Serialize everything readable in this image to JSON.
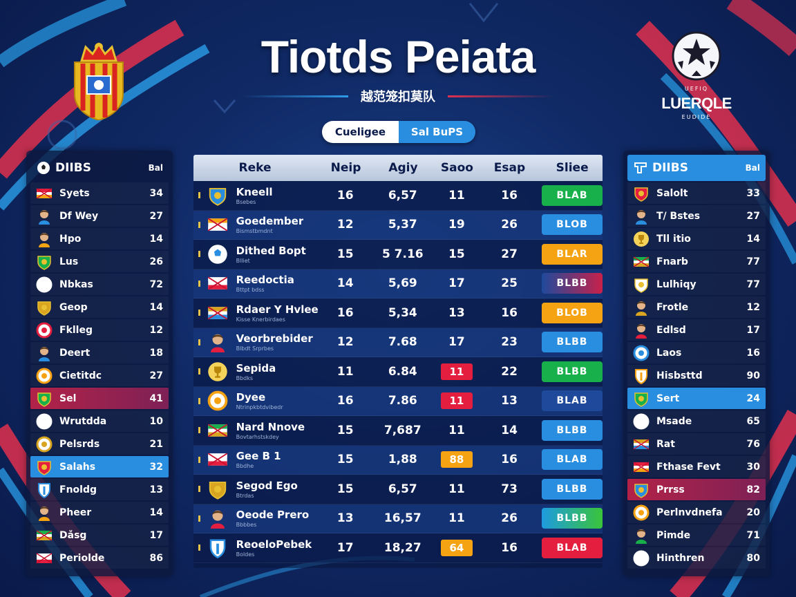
{
  "header": {
    "title": "Tiotds Peiata",
    "subtitle": "越范笼扣莫队",
    "toggle": {
      "active": "Cueligee",
      "inactive": "Sal BuPS"
    },
    "league": {
      "name": "LUERQLE",
      "tag": "EUDIDE",
      "top": "UEFIQ"
    }
  },
  "left_panel": {
    "header": {
      "label": "DIIBS",
      "value": "Bal"
    },
    "rows": [
      {
        "name": "Syets",
        "value": "34",
        "icon": "flag-icon",
        "style": ""
      },
      {
        "name": "Df Wey",
        "value": "27",
        "icon": "player-icon",
        "style": ""
      },
      {
        "name": "Hpo",
        "value": "14",
        "icon": "player-icon",
        "style": ""
      },
      {
        "name": "Lus",
        "value": "26",
        "icon": "crest-icon",
        "style": ""
      },
      {
        "name": "Nbkas",
        "value": "72",
        "icon": "badge-icon",
        "style": ""
      },
      {
        "name": "Geop",
        "value": "14",
        "icon": "crest-icon",
        "style": ""
      },
      {
        "name": "Fklleg",
        "value": "12",
        "icon": "badge-icon",
        "style": ""
      },
      {
        "name": "Deert",
        "value": "18",
        "icon": "player-icon",
        "style": ""
      },
      {
        "name": "Cietitdc",
        "value": "27",
        "icon": "badge-icon",
        "style": ""
      },
      {
        "name": "Sel",
        "value": "41",
        "icon": "crest-icon",
        "style": "red"
      },
      {
        "name": "Wrutdda",
        "value": "10",
        "icon": "badge-icon",
        "style": ""
      },
      {
        "name": "Pelsrds",
        "value": "21",
        "icon": "badge-icon",
        "style": ""
      },
      {
        "name": "Salahs",
        "value": "32",
        "icon": "crest-icon",
        "style": "blue"
      },
      {
        "name": "Fnoldg",
        "value": "13",
        "icon": "shield-icon",
        "style": ""
      },
      {
        "name": "Pheer",
        "value": "14",
        "icon": "player-icon",
        "style": ""
      },
      {
        "name": "Dåsg",
        "value": "17",
        "icon": "flag-icon",
        "style": ""
      },
      {
        "name": "Periolde",
        "value": "86",
        "icon": "flag-icon",
        "style": ""
      }
    ]
  },
  "right_panel": {
    "header": {
      "label": "DIIBS",
      "value": "Bal"
    },
    "rows": [
      {
        "name": "Salolt",
        "value": "33",
        "icon": "crest-icon",
        "style": ""
      },
      {
        "name": "T/ Bstes",
        "value": "27",
        "icon": "player-icon",
        "style": ""
      },
      {
        "name": "Tll itio",
        "value": "14",
        "icon": "trophy-icon",
        "style": ""
      },
      {
        "name": "Fnarb",
        "value": "77",
        "icon": "flag-icon",
        "style": ""
      },
      {
        "name": "Lulhiqy",
        "value": "77",
        "icon": "crest-icon",
        "style": ""
      },
      {
        "name": "Frotle",
        "value": "12",
        "icon": "player-icon",
        "style": ""
      },
      {
        "name": "Edlsd",
        "value": "17",
        "icon": "player-icon",
        "style": ""
      },
      {
        "name": "Laos",
        "value": "16",
        "icon": "badge-icon",
        "style": ""
      },
      {
        "name": "Hisbsttd",
        "value": "90",
        "icon": "shield-icon",
        "style": ""
      },
      {
        "name": "Sert",
        "value": "24",
        "icon": "crest-icon",
        "style": "blue"
      },
      {
        "name": "Msade",
        "value": "65",
        "icon": "badge-icon",
        "style": ""
      },
      {
        "name": "Rat",
        "value": "76",
        "icon": "flag-icon",
        "style": ""
      },
      {
        "name": "Fthase Fevt",
        "value": "30",
        "icon": "flag-icon",
        "style": ""
      },
      {
        "name": "Prrss",
        "value": "82",
        "icon": "crest-icon",
        "style": "red"
      },
      {
        "name": "Perlnvdnefa",
        "value": "20",
        "icon": "badge-icon",
        "style": ""
      },
      {
        "name": "Pimde",
        "value": "71",
        "icon": "player-icon",
        "style": ""
      },
      {
        "name": "Hinthren",
        "value": "80",
        "icon": "badge-icon",
        "style": ""
      }
    ]
  },
  "table": {
    "headers": [
      "Reke",
      "Neip",
      "Agiy",
      "Saoo",
      "Esap",
      "Sliee"
    ],
    "rows": [
      {
        "team": "Kneell",
        "sub": "Bsebes",
        "icon": "crest-icon",
        "a": "16",
        "b": "6,57",
        "c": "11",
        "c_hl": "",
        "d": "16",
        "badge": "BLAB",
        "badge_color": "green"
      },
      {
        "team": "Goedember",
        "sub": "Bismstbmdnt",
        "icon": "flag-icon",
        "a": "12",
        "b": "5,37",
        "c": "19",
        "c_hl": "",
        "d": "26",
        "badge": "BLOB",
        "badge_color": "blue"
      },
      {
        "team": "Dithed Bopt",
        "sub": "Blliet",
        "icon": "ball-icon",
        "a": "15",
        "b": "5 7.16",
        "c": "15",
        "c_hl": "",
        "d": "27",
        "badge": "BLAR",
        "badge_color": "orange"
      },
      {
        "team": "Reedoctia",
        "sub": "Bttpt bdss",
        "icon": "flag-icon",
        "a": "14",
        "b": "5,69",
        "c": "17",
        "c_hl": "",
        "d": "25",
        "badge": "BLBB",
        "badge_color": "navy-red"
      },
      {
        "team": "Rdaer Y Hvlee",
        "sub": "Kisse Knerbirdaes",
        "icon": "flag-icon",
        "a": "16",
        "b": "5,34",
        "c": "13",
        "c_hl": "",
        "d": "16",
        "badge": "BLOB",
        "badge_color": "orange"
      },
      {
        "team": "Veorbrebider",
        "sub": "Blbdt Srprbes",
        "icon": "player-icon",
        "a": "12",
        "b": "7.68",
        "c": "17",
        "c_hl": "",
        "d": "23",
        "badge": "BLBB",
        "badge_color": "blue"
      },
      {
        "team": "Sepida",
        "sub": "Bbdks",
        "icon": "trophy-icon",
        "a": "11",
        "b": "6.84",
        "c": "11",
        "c_hl": "red",
        "d": "22",
        "badge": "BLBB",
        "badge_color": "green"
      },
      {
        "team": "Dyee",
        "sub": "Ntrinpkbtdvibedr",
        "icon": "badge-icon",
        "a": "16",
        "b": "7.86",
        "c": "11",
        "c_hl": "red",
        "d": "13",
        "badge": "BLAB",
        "badge_color": "navy"
      },
      {
        "team": "Nard Nnove",
        "sub": "Bovtarhstskdey",
        "icon": "flag-icon",
        "a": "15",
        "b": "7,687",
        "c": "11",
        "c_hl": "",
        "d": "14",
        "badge": "BLBB",
        "badge_color": "blue"
      },
      {
        "team": "Gee B 1",
        "sub": "Bbdhe",
        "icon": "flag-icon",
        "a": "15",
        "b": "1,88",
        "c": "88",
        "c_hl": "orange",
        "d": "16",
        "badge": "BLAB",
        "badge_color": "blue"
      },
      {
        "team": "Segod Ego",
        "sub": "Btrdas",
        "icon": "crest-icon",
        "a": "15",
        "b": "6,57",
        "c": "11",
        "c_hl": "",
        "d": "73",
        "badge": "BLBB",
        "badge_color": "blue"
      },
      {
        "team": "Oeode Prero",
        "sub": "Bbbbes",
        "icon": "player-icon",
        "a": "13",
        "b": "16,57",
        "c": "11",
        "c_hl": "",
        "d": "26",
        "badge": "BLBB",
        "badge_color": "teal-green"
      },
      {
        "team": "ReoeloPebek",
        "sub": "Boldes",
        "icon": "shield-icon",
        "a": "17",
        "b": "18,27",
        "c": "64",
        "c_hl": "orange",
        "d": "16",
        "badge": "BLAB",
        "badge_color": "red"
      }
    ]
  },
  "colors": {
    "green": "#18b04a",
    "blue": "#2a8ee0",
    "orange": "#f5a313",
    "red": "#e41e3f",
    "navy": "#1f4a9c"
  }
}
